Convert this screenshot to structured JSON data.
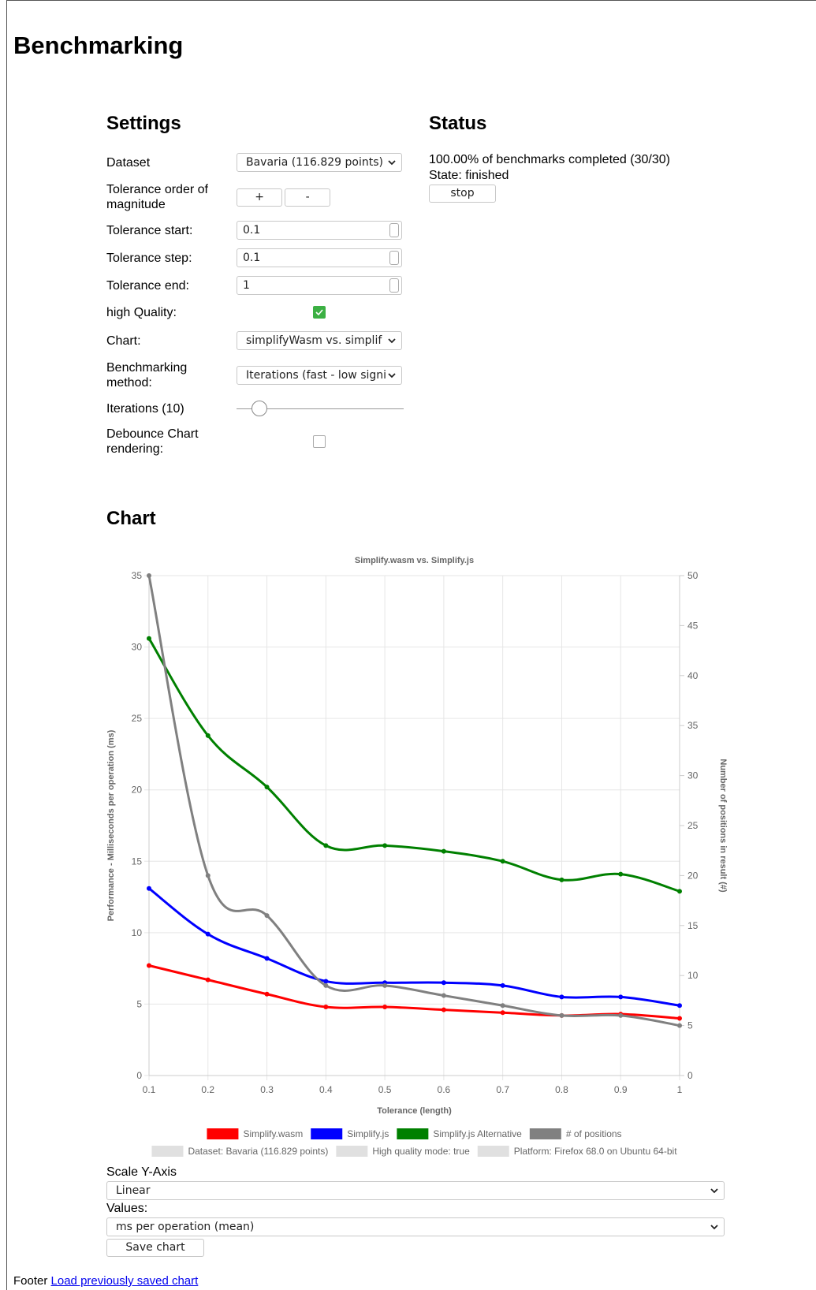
{
  "header": {
    "title": "Benchmarking"
  },
  "settings": {
    "title": "Settings",
    "rows": [
      {
        "label": "Dataset",
        "select": "Bavaria (116.829 points)"
      },
      {
        "label": "Tolerance order of magnitude",
        "buttons": [
          "+",
          "-"
        ]
      },
      {
        "label": "Tolerance start:",
        "input": "0.1"
      },
      {
        "label": "Tolerance step:",
        "input": "0.1"
      },
      {
        "label": "Tolerance end:",
        "input": "1"
      },
      {
        "label": "high Quality:",
        "checked": true
      },
      {
        "label": "Chart:",
        "select": "simplifyWasm vs. simplif"
      },
      {
        "label": "Benchmarking method:",
        "select": "Iterations (fast - low signi"
      },
      {
        "label": "Iterations (10)",
        "slider": true
      },
      {
        "label": "Debounce Chart rendering:",
        "checked": false
      }
    ]
  },
  "status": {
    "title": "Status",
    "progress": "100.00% of benchmarks completed (30/30)",
    "state": "State: finished",
    "button": "stop"
  },
  "chart_section": {
    "title": "Chart"
  },
  "chart_data": {
    "type": "line",
    "title": "Simplify.wasm vs. Simplify.js",
    "x_label": "Tolerance (length)",
    "y_label": "Performance - Milliseconds per operation (ms)",
    "y2_label": "Number of positions in result (#)",
    "x": [
      0.1,
      0.2,
      0.3,
      0.4,
      0.5,
      0.6,
      0.7,
      0.8,
      0.9,
      1
    ],
    "series": [
      {
        "name": "Simplify.wasm",
        "color": "#ff0000",
        "values": [
          7.7,
          6.7,
          5.7,
          4.8,
          4.8,
          4.6,
          4.4,
          4.2,
          4.3,
          4.0
        ]
      },
      {
        "name": "Simplify.js",
        "color": "#0000ff",
        "values": [
          13.1,
          9.9,
          8.2,
          6.6,
          6.5,
          6.5,
          6.3,
          5.5,
          5.5,
          4.9
        ]
      },
      {
        "name": "Simplify.js Alternative",
        "color": "#008000",
        "values": [
          30.6,
          23.8,
          20.2,
          16.1,
          16.1,
          15.7,
          15.0,
          13.7,
          14.1,
          12.9
        ]
      },
      {
        "name": "# of positions",
        "color": "#808080",
        "axis": "y2",
        "values": [
          50,
          20,
          16,
          9,
          9,
          8,
          7,
          6,
          6,
          5
        ]
      }
    ],
    "legend_notes": [
      "Dataset: Bavaria (116.829 points)",
      "High quality mode: true",
      "Platform: Firefox 68.0 on Ubuntu 64-bit"
    ],
    "note_color": "#e0e0e0",
    "xlim": [
      0.1,
      1
    ],
    "xticks": [
      0.1,
      0.2,
      0.3,
      0.4,
      0.5,
      0.6,
      0.7,
      0.8,
      0.9,
      1
    ],
    "ylim": [
      0,
      35
    ],
    "yticks": [
      0,
      5,
      10,
      15,
      20,
      25,
      30,
      35
    ],
    "y2lim": [
      0,
      50
    ],
    "y2ticks": [
      0,
      5,
      10,
      15,
      20,
      25,
      30,
      35,
      40,
      45,
      50
    ],
    "grid": true,
    "legend": "bottom"
  },
  "controls": {
    "scale_label": "Scale Y-Axis",
    "scale_value": "Linear",
    "values_label": "Values:",
    "values_value": "ms per operation (mean)",
    "save_button": "Save chart"
  },
  "footer": {
    "text": "Footer",
    "link": "Load previously saved chart"
  }
}
